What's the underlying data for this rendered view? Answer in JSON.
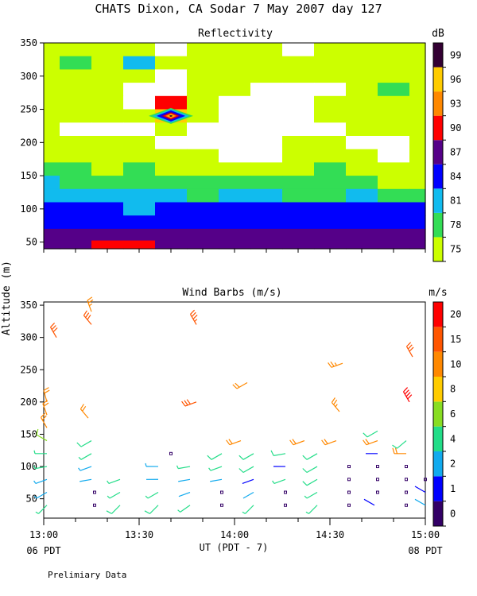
{
  "header": {
    "title": "CHATS Dixon, CA  Sodar    7 May 2007  day 127"
  },
  "footer": {
    "note": "Prelimiary Data"
  },
  "x_axis": {
    "label": "UT  (PDT - 7)",
    "ticks": [
      "13:00",
      "13:30",
      "14:00",
      "14:30",
      "15:00"
    ],
    "left_sub": "06 PDT",
    "right_sub": "08 PDT"
  },
  "y_axis": {
    "label": "Altitude (m)",
    "ticks": [
      "50",
      "100",
      "150",
      "200",
      "250",
      "300",
      "350"
    ]
  },
  "colors": {
    "reflectivity_levels": [
      "#ccff00",
      "#33dd55",
      "#11bbee",
      "#0000ff",
      "#550088",
      "#ff0000",
      "#ff8800",
      "#ffcc00",
      "#330033"
    ],
    "wind_levels": [
      "#330066",
      "#0000ff",
      "#11aaee",
      "#22dd88",
      "#88dd22",
      "#ffcc00",
      "#ff8800",
      "#ff5500",
      "#ff0000"
    ]
  },
  "chart_data": [
    {
      "type": "heatmap",
      "title": "Reflectivity",
      "colorbar_unit": "dB",
      "colorbar_ticks": [
        "75",
        "78",
        "81",
        "84",
        "87",
        "90",
        "93",
        "96",
        "99"
      ],
      "x_range": [
        "13:00",
        "15:00"
      ],
      "ylim": [
        40,
        350
      ],
      "heights_m": [
        340,
        320,
        300,
        280,
        260,
        240,
        220,
        200,
        180,
        160,
        140,
        120,
        100,
        80,
        60,
        45
      ],
      "times": [
        "13:00",
        "13:10",
        "13:20",
        "13:30",
        "13:40",
        "13:50",
        "14:00",
        "14:10",
        "14:20",
        "14:30",
        "14:40",
        "14:50",
        "15:00"
      ],
      "dB": [
        [
          77,
          77,
          77,
          76,
          74,
          77,
          75,
          77,
          74,
          75,
          75,
          77,
          75
        ],
        [
          77,
          80,
          77,
          81,
          77,
          77,
          77,
          76,
          77,
          77,
          75,
          77,
          76
        ],
        [
          77,
          77,
          77,
          77,
          74,
          76,
          77,
          75,
          75,
          77,
          76,
          77,
          75
        ],
        [
          77,
          76,
          77,
          74,
          74,
          75,
          75,
          74,
          74,
          74,
          76,
          78,
          76
        ],
        [
          76,
          76,
          75,
          74,
          90,
          75,
          74,
          74,
          74,
          75,
          77,
          75,
          76
        ],
        [
          76,
          75,
          75,
          75,
          97,
          75,
          74,
          74,
          74,
          76,
          75,
          75,
          75
        ],
        [
          75,
          74,
          74,
          74,
          75,
          74,
          74,
          74,
          74,
          74,
          75,
          75,
          75
        ],
        [
          75,
          75,
          76,
          75,
          74,
          74,
          74,
          74,
          75,
          75,
          74,
          74,
          75
        ],
        [
          76,
          77,
          77,
          76,
          75,
          75,
          74,
          74,
          75,
          77,
          75,
          74,
          75
        ],
        [
          80,
          78,
          77,
          78,
          77,
          75,
          77,
          75,
          77,
          78,
          77,
          75,
          77
        ],
        [
          81,
          80,
          79,
          78,
          78,
          78,
          78,
          78,
          78,
          78,
          78,
          77,
          77
        ],
        [
          82,
          81,
          81,
          81,
          81,
          80,
          81,
          81,
          80,
          80,
          81,
          80,
          80
        ],
        [
          84,
          84,
          84,
          83,
          84,
          84,
          84,
          84,
          84,
          84,
          84,
          84,
          84
        ],
        [
          85,
          86,
          86,
          85,
          85,
          85,
          85,
          85,
          85,
          85,
          85,
          85,
          85
        ],
        [
          88,
          88,
          89,
          88,
          87,
          87,
          87,
          87,
          88,
          87,
          87,
          87,
          87
        ],
        [
          88,
          89,
          90,
          90,
          88,
          88,
          88,
          88,
          88,
          88,
          88,
          88,
          88
        ]
      ]
    },
    {
      "type": "scatter",
      "title": "Wind Barbs (m/s)",
      "colorbar_unit": "m/s",
      "colorbar_ticks": [
        "0",
        "1",
        "2",
        "4",
        "6",
        "8",
        "10",
        "15",
        "20"
      ],
      "xlabel": "UT  (PDT - 7)",
      "ylabel": "Altitude (m)",
      "ylim": [
        20,
        355
      ],
      "levels_m": [
        40,
        60,
        80,
        100,
        120,
        140,
        160,
        180,
        200,
        260,
        280,
        300,
        320,
        340
      ],
      "points": [
        {
          "t": "13:01",
          "z": 40,
          "s": 4,
          "d": 225
        },
        {
          "t": "13:01",
          "z": 60,
          "s": 3,
          "d": 240
        },
        {
          "t": "13:01",
          "z": 80,
          "s": 3,
          "d": 250
        },
        {
          "t": "13:01",
          "z": 100,
          "s": 4,
          "d": 260
        },
        {
          "t": "13:01",
          "z": 120,
          "s": 4,
          "d": 270
        },
        {
          "t": "13:01",
          "z": 140,
          "s": 7,
          "d": 300
        },
        {
          "t": "13:01",
          "z": 160,
          "s": 12,
          "d": 330
        },
        {
          "t": "13:01",
          "z": 180,
          "s": 12,
          "d": 340
        },
        {
          "t": "13:01",
          "z": 200,
          "s": 12,
          "d": 345
        },
        {
          "t": "13:04",
          "z": 300,
          "s": 15,
          "d": 330
        },
        {
          "t": "13:16",
          "z": 40,
          "s": 0,
          "d": 0
        },
        {
          "t": "13:16",
          "z": 60,
          "s": 0,
          "d": 0
        },
        {
          "t": "13:15",
          "z": 80,
          "s": 2,
          "d": 260
        },
        {
          "t": "13:15",
          "z": 100,
          "s": 3,
          "d": 250
        },
        {
          "t": "13:15",
          "z": 120,
          "s": 4,
          "d": 240
        },
        {
          "t": "13:15",
          "z": 140,
          "s": 5,
          "d": 240
        },
        {
          "t": "13:14",
          "z": 175,
          "s": 12,
          "d": 320
        },
        {
          "t": "13:15",
          "z": 320,
          "s": 15,
          "d": 320
        },
        {
          "t": "13:15",
          "z": 340,
          "s": 14,
          "d": 340
        },
        {
          "t": "13:24",
          "z": 40,
          "s": 5,
          "d": 225
        },
        {
          "t": "13:24",
          "z": 60,
          "s": 4,
          "d": 240
        },
        {
          "t": "13:24",
          "z": 80,
          "s": 4,
          "d": 250
        },
        {
          "t": "13:36",
          "z": 40,
          "s": 5,
          "d": 225
        },
        {
          "t": "13:36",
          "z": 60,
          "s": 4,
          "d": 240
        },
        {
          "t": "13:36",
          "z": 80,
          "s": 2,
          "d": 270
        },
        {
          "t": "13:36",
          "z": 100,
          "s": 3,
          "d": 270
        },
        {
          "t": "13:40",
          "z": 120,
          "s": 0,
          "d": 0
        },
        {
          "t": "13:46",
          "z": 40,
          "s": 4,
          "d": 235
        },
        {
          "t": "13:46",
          "z": 60,
          "s": 2,
          "d": 250
        },
        {
          "t": "13:46",
          "z": 80,
          "s": 2,
          "d": 260
        },
        {
          "t": "13:46",
          "z": 100,
          "s": 4,
          "d": 260
        },
        {
          "t": "13:48",
          "z": 200,
          "s": 15,
          "d": 250
        },
        {
          "t": "13:48",
          "z": 320,
          "s": 18,
          "d": 330
        },
        {
          "t": "13:56",
          "z": 40,
          "s": 0,
          "d": 0
        },
        {
          "t": "13:56",
          "z": 60,
          "s": 0,
          "d": 0
        },
        {
          "t": "13:56",
          "z": 80,
          "s": 2,
          "d": 260
        },
        {
          "t": "13:56",
          "z": 100,
          "s": 4,
          "d": 250
        },
        {
          "t": "13:56",
          "z": 120,
          "s": 5,
          "d": 240
        },
        {
          "t": "14:02",
          "z": 140,
          "s": 12,
          "d": 250
        },
        {
          "t": "14:04",
          "z": 230,
          "s": 12,
          "d": 240
        },
        {
          "t": "14:06",
          "z": 40,
          "s": 4,
          "d": 225
        },
        {
          "t": "14:06",
          "z": 60,
          "s": 2,
          "d": 240
        },
        {
          "t": "14:06",
          "z": 80,
          "s": 1,
          "d": 250
        },
        {
          "t": "14:06",
          "z": 100,
          "s": 5,
          "d": 240
        },
        {
          "t": "14:06",
          "z": 120,
          "s": 5,
          "d": 240
        },
        {
          "t": "14:16",
          "z": 40,
          "s": 0,
          "d": 0
        },
        {
          "t": "14:16",
          "z": 60,
          "s": 0,
          "d": 0
        },
        {
          "t": "14:16",
          "z": 80,
          "s": 4,
          "d": 250
        },
        {
          "t": "14:16",
          "z": 100,
          "s": 1,
          "d": 270
        },
        {
          "t": "14:16",
          "z": 120,
          "s": 5,
          "d": 260
        },
        {
          "t": "14:22",
          "z": 140,
          "s": 12,
          "d": 250
        },
        {
          "t": "14:26",
          "z": 40,
          "s": 4,
          "d": 225
        },
        {
          "t": "14:26",
          "z": 60,
          "s": 4,
          "d": 240
        },
        {
          "t": "14:26",
          "z": 80,
          "s": 5,
          "d": 240
        },
        {
          "t": "14:26",
          "z": 100,
          "s": 5,
          "d": 240
        },
        {
          "t": "14:26",
          "z": 120,
          "s": 5,
          "d": 240
        },
        {
          "t": "14:32",
          "z": 140,
          "s": 12,
          "d": 250
        },
        {
          "t": "14:33",
          "z": 185,
          "s": 14,
          "d": 320
        },
        {
          "t": "14:34",
          "z": 260,
          "s": 14,
          "d": 250
        },
        {
          "t": "14:36",
          "z": 40,
          "s": 0,
          "d": 0
        },
        {
          "t": "14:36",
          "z": 60,
          "s": 0,
          "d": 0
        },
        {
          "t": "14:36",
          "z": 80,
          "s": 0,
          "d": 0
        },
        {
          "t": "14:36",
          "z": 100,
          "s": 0,
          "d": 0
        },
        {
          "t": "14:44",
          "z": 40,
          "s": 1,
          "d": 300
        },
        {
          "t": "14:45",
          "z": 60,
          "s": 0,
          "d": 0
        },
        {
          "t": "14:45",
          "z": 80,
          "s": 0,
          "d": 0
        },
        {
          "t": "14:45",
          "z": 100,
          "s": 0,
          "d": 0
        },
        {
          "t": "14:45",
          "z": 120,
          "s": 1,
          "d": 270
        },
        {
          "t": "14:45",
          "z": 140,
          "s": 12,
          "d": 250
        },
        {
          "t": "14:45",
          "z": 155,
          "s": 5,
          "d": 240
        },
        {
          "t": "14:54",
          "z": 40,
          "s": 0,
          "d": 0
        },
        {
          "t": "14:54",
          "z": 60,
          "s": 0,
          "d": 0
        },
        {
          "t": "14:54",
          "z": 80,
          "s": 0,
          "d": 0
        },
        {
          "t": "14:54",
          "z": 100,
          "s": 0,
          "d": 0
        },
        {
          "t": "14:54",
          "z": 120,
          "s": 12,
          "d": 270
        },
        {
          "t": "14:54",
          "z": 140,
          "s": 5,
          "d": 230
        },
        {
          "t": "14:55",
          "z": 200,
          "s": 20,
          "d": 330
        },
        {
          "t": "14:56",
          "z": 270,
          "s": 15,
          "d": 330
        },
        {
          "t": "15:00",
          "z": 40,
          "s": 2,
          "d": 300
        },
        {
          "t": "15:00",
          "z": 60,
          "s": 1,
          "d": 300
        },
        {
          "t": "15:00",
          "z": 80,
          "s": 0,
          "d": 0
        }
      ]
    }
  ]
}
